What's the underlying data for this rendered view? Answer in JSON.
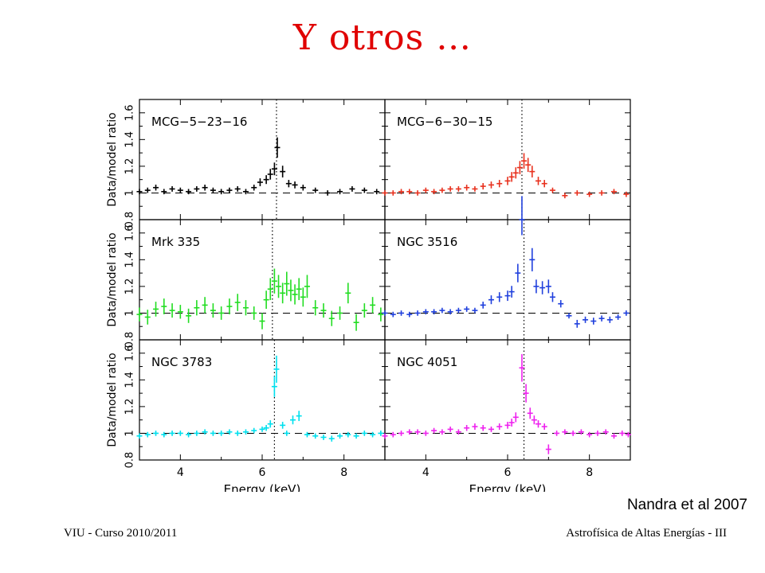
{
  "slide": {
    "title": "Y otros …",
    "credit": "Nandra et al 2007",
    "footer_left": "VIU - Curso 2010/2011",
    "footer_right": "Astrofísica de Altas Energías - III"
  },
  "chart_data": {
    "type": "scatter",
    "layout": "3x2 panel grid",
    "xlabel": "Energy (keV)",
    "ylabel": "Data/model ratio",
    "xlim": [
      3,
      9
    ],
    "ylim": [
      0.8,
      1.7
    ],
    "x_ticks": [
      4,
      6,
      8
    ],
    "y_ticks": [
      0.8,
      1,
      1.2,
      1.4,
      1.6
    ],
    "reference_line": {
      "y": 1,
      "style": "dashed"
    },
    "line_energy": {
      "x": 6.4,
      "style": "dotted"
    },
    "grid": false,
    "panels": [
      {
        "name": "MCG−5−23−16",
        "color": "#000000",
        "dotted_x": 6.35,
        "x": [
          3.0,
          3.2,
          3.4,
          3.6,
          3.8,
          4.0,
          4.2,
          4.4,
          4.6,
          4.8,
          5.0,
          5.2,
          5.4,
          5.6,
          5.8,
          5.95,
          6.1,
          6.2,
          6.3,
          6.37,
          6.5,
          6.65,
          6.8,
          7.0,
          7.3,
          7.6,
          7.9,
          8.2,
          8.5,
          8.8
        ],
        "y": [
          1.01,
          1.02,
          1.04,
          1.01,
          1.03,
          1.02,
          1.01,
          1.03,
          1.04,
          1.02,
          1.01,
          1.02,
          1.03,
          1.01,
          1.04,
          1.08,
          1.1,
          1.14,
          1.18,
          1.34,
          1.16,
          1.07,
          1.06,
          1.04,
          1.02,
          1.0,
          1.01,
          1.03,
          1.02,
          1.01
        ]
      },
      {
        "name": "MCG−6−30−15",
        "color": "#e8311e",
        "dotted_x": 6.35,
        "x": [
          3.0,
          3.2,
          3.4,
          3.6,
          3.8,
          4.0,
          4.2,
          4.4,
          4.6,
          4.8,
          5.0,
          5.2,
          5.4,
          5.6,
          5.8,
          6.0,
          6.1,
          6.2,
          6.3,
          6.4,
          6.5,
          6.6,
          6.75,
          6.9,
          7.1,
          7.4,
          7.7,
          8.0,
          8.3,
          8.6,
          8.9
        ],
        "y": [
          1.0,
          1.0,
          1.01,
          1.01,
          1.0,
          1.02,
          1.01,
          1.02,
          1.03,
          1.03,
          1.04,
          1.03,
          1.05,
          1.06,
          1.07,
          1.09,
          1.12,
          1.15,
          1.19,
          1.24,
          1.21,
          1.16,
          1.09,
          1.07,
          1.02,
          0.98,
          1.0,
          0.99,
          1.0,
          1.01,
          0.99
        ]
      },
      {
        "name": "Mrk  335",
        "color": "#22dd22",
        "dotted_x": 6.25,
        "x": [
          3.0,
          3.2,
          3.4,
          3.6,
          3.8,
          4.0,
          4.2,
          4.4,
          4.6,
          4.8,
          5.0,
          5.2,
          5.4,
          5.6,
          5.8,
          6.0,
          6.1,
          6.2,
          6.3,
          6.4,
          6.5,
          6.6,
          6.7,
          6.8,
          6.9,
          7.0,
          7.1,
          7.3,
          7.5,
          7.7,
          7.9,
          8.1,
          8.3,
          8.5,
          8.7,
          8.9
        ],
        "y": [
          0.99,
          0.97,
          1.03,
          1.05,
          1.02,
          1.01,
          0.98,
          1.04,
          1.06,
          1.02,
          1.0,
          1.05,
          1.08,
          1.04,
          1.0,
          0.94,
          1.1,
          1.18,
          1.24,
          1.2,
          1.15,
          1.22,
          1.17,
          1.14,
          1.18,
          1.12,
          1.2,
          1.04,
          1.02,
          0.96,
          1.0,
          1.15,
          0.93,
          1.02,
          1.06,
          0.99
        ]
      },
      {
        "name": "NGC  3516",
        "color": "#2040dd",
        "dotted_x": 6.4,
        "x": [
          3.0,
          3.2,
          3.4,
          3.6,
          3.8,
          4.0,
          4.2,
          4.4,
          4.6,
          4.8,
          5.0,
          5.2,
          5.4,
          5.6,
          5.8,
          6.0,
          6.1,
          6.25,
          6.35,
          6.6,
          6.7,
          6.85,
          7.0,
          7.1,
          7.3,
          7.5,
          7.7,
          7.9,
          8.1,
          8.3,
          8.5,
          8.7,
          8.9
        ],
        "y": [
          1.0,
          0.99,
          1.0,
          0.99,
          1.0,
          1.01,
          1.01,
          1.02,
          1.01,
          1.02,
          1.03,
          1.02,
          1.06,
          1.1,
          1.12,
          1.13,
          1.16,
          1.3,
          1.73,
          1.4,
          1.2,
          1.19,
          1.2,
          1.12,
          1.07,
          0.98,
          0.92,
          0.95,
          0.94,
          0.96,
          0.95,
          0.97,
          1.0
        ]
      },
      {
        "name": "NGC  3783",
        "color": "#00e0ee",
        "dotted_x": 6.3,
        "x": [
          3.0,
          3.2,
          3.4,
          3.6,
          3.8,
          4.0,
          4.2,
          4.4,
          4.6,
          4.8,
          5.0,
          5.2,
          5.4,
          5.6,
          5.8,
          6.0,
          6.1,
          6.2,
          6.3,
          6.35,
          6.5,
          6.6,
          6.75,
          6.9,
          7.1,
          7.3,
          7.5,
          7.7,
          7.9,
          8.1,
          8.3,
          8.5,
          8.7,
          8.9
        ],
        "y": [
          0.98,
          0.99,
          1.0,
          0.99,
          1.0,
          1.0,
          0.99,
          1.0,
          1.01,
          1.0,
          1.0,
          1.01,
          1.0,
          1.01,
          1.02,
          1.03,
          1.04,
          1.07,
          1.35,
          1.48,
          1.06,
          1.0,
          1.1,
          1.13,
          0.99,
          0.98,
          0.97,
          0.96,
          0.98,
          0.99,
          0.98,
          1.0,
          0.99,
          1.0
        ]
      },
      {
        "name": "NGC  4051",
        "color": "#ee22ee",
        "dotted_x": 6.4,
        "x": [
          3.0,
          3.2,
          3.4,
          3.6,
          3.8,
          4.0,
          4.2,
          4.4,
          4.6,
          4.8,
          5.0,
          5.2,
          5.4,
          5.6,
          5.8,
          6.0,
          6.1,
          6.2,
          6.35,
          6.45,
          6.55,
          6.65,
          6.75,
          6.9,
          7.0,
          7.2,
          7.4,
          7.6,
          7.8,
          8.0,
          8.2,
          8.4,
          8.6,
          8.8,
          8.95
        ],
        "y": [
          0.98,
          0.99,
          1.0,
          1.01,
          1.01,
          1.0,
          1.02,
          1.01,
          1.03,
          1.01,
          1.04,
          1.05,
          1.04,
          1.03,
          1.05,
          1.06,
          1.08,
          1.12,
          1.49,
          1.3,
          1.15,
          1.1,
          1.07,
          1.05,
          0.88,
          1.0,
          1.01,
          1.0,
          1.01,
          0.99,
          1.0,
          1.01,
          0.98,
          1.0,
          0.99
        ]
      }
    ]
  }
}
